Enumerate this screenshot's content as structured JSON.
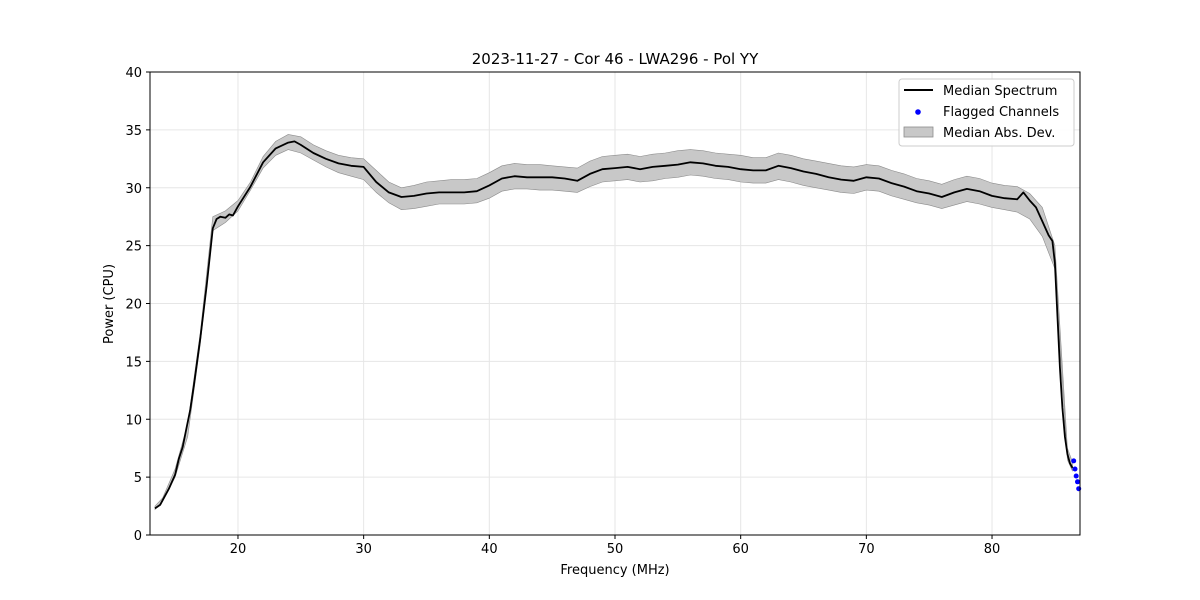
{
  "chart_data": {
    "type": "line",
    "title": "2023-11-27 - Cor 46 - LWA296 - Pol YY",
    "xlabel": "Frequency (MHz)",
    "ylabel": "Power (CPU)",
    "xlim": [
      13,
      87
    ],
    "ylim": [
      0,
      40
    ],
    "xticks": [
      20,
      30,
      40,
      50,
      60,
      70,
      80
    ],
    "yticks": [
      0,
      5,
      10,
      15,
      20,
      25,
      30,
      35,
      40
    ],
    "grid": true,
    "legend_position": "top-right",
    "legend": {
      "median_label": "Median Spectrum",
      "flagged_label": "Flagged Channels",
      "mad_label": "Median Abs. Dev."
    },
    "colors": {
      "median": "#000000",
      "flagged": "#0000ff",
      "mad_fill": "#c8c8c8",
      "mad_edge": "#8c8c8c"
    },
    "series": [
      {
        "name": "Median Spectrum",
        "x": [
          13.4,
          13.8,
          14.0,
          14.5,
          15.0,
          15.3,
          15.6,
          15.9,
          16.2,
          16.5,
          17.0,
          17.5,
          18.0,
          18.3,
          18.6,
          19.0,
          19.3,
          19.6,
          20.0,
          21.0,
          22.0,
          23.0,
          24.0,
          24.5,
          25.0,
          26.0,
          27.0,
          28.0,
          29.0,
          30.0,
          31.0,
          32.0,
          33.0,
          34.0,
          35.0,
          36.0,
          37.0,
          38.0,
          39.0,
          40.0,
          41.0,
          42.0,
          43.0,
          44.0,
          45.0,
          46.0,
          47.0,
          48.0,
          49.0,
          50.0,
          51.0,
          52.0,
          53.0,
          54.0,
          55.0,
          56.0,
          57.0,
          58.0,
          59.0,
          60.0,
          61.0,
          62.0,
          63.0,
          64.0,
          65.0,
          66.0,
          67.0,
          68.0,
          69.0,
          70.0,
          71.0,
          72.0,
          73.0,
          74.0,
          75.0,
          76.0,
          77.0,
          78.0,
          79.0,
          80.0,
          81.0,
          82.0,
          82.5,
          83.0,
          83.5,
          84.0,
          84.5,
          84.8,
          85.0,
          85.2,
          85.4,
          85.6,
          85.8,
          86.0,
          86.2,
          86.4
        ],
        "y": [
          2.3,
          2.6,
          3.0,
          4.0,
          5.2,
          6.6,
          7.6,
          9.2,
          10.8,
          13.0,
          17.0,
          21.5,
          26.5,
          27.3,
          27.5,
          27.4,
          27.7,
          27.6,
          28.4,
          30.1,
          32.2,
          33.4,
          33.9,
          34.0,
          33.7,
          33.0,
          32.5,
          32.1,
          31.9,
          31.8,
          30.5,
          29.6,
          29.2,
          29.3,
          29.5,
          29.6,
          29.6,
          29.6,
          29.7,
          30.2,
          30.8,
          31.0,
          30.9,
          30.9,
          30.9,
          30.8,
          30.6,
          31.2,
          31.6,
          31.7,
          31.8,
          31.6,
          31.8,
          31.9,
          32.0,
          32.2,
          32.1,
          31.9,
          31.8,
          31.6,
          31.5,
          31.5,
          31.9,
          31.7,
          31.4,
          31.2,
          30.9,
          30.7,
          30.6,
          30.9,
          30.8,
          30.4,
          30.1,
          29.7,
          29.5,
          29.2,
          29.6,
          29.9,
          29.7,
          29.3,
          29.1,
          29.0,
          29.6,
          28.9,
          28.3,
          27.1,
          25.9,
          25.4,
          23.5,
          19.0,
          14.5,
          11.0,
          8.5,
          7.0,
          6.2,
          5.8
        ]
      },
      {
        "name": "Median Abs. Dev.",
        "x": [
          13.4,
          14.0,
          15.0,
          16.0,
          17.0,
          18.0,
          19.0,
          20.0,
          21.0,
          22.0,
          23.0,
          24.0,
          25.0,
          26.0,
          27.0,
          28.0,
          29.0,
          30.0,
          31.0,
          32.0,
          33.0,
          34.0,
          35.0,
          36.0,
          37.0,
          38.0,
          39.0,
          40.0,
          41.0,
          42.0,
          43.0,
          44.0,
          45.0,
          46.0,
          47.0,
          48.0,
          49.0,
          50.0,
          51.0,
          52.0,
          53.0,
          54.0,
          55.0,
          56.0,
          57.0,
          58.0,
          59.0,
          60.0,
          61.0,
          62.0,
          63.0,
          64.0,
          65.0,
          66.0,
          67.0,
          68.0,
          69.0,
          70.0,
          71.0,
          72.0,
          73.0,
          74.0,
          75.0,
          76.0,
          77.0,
          78.0,
          79.0,
          80.0,
          81.0,
          82.0,
          83.0,
          84.0,
          85.0,
          86.0,
          86.4
        ],
        "lower": [
          2.2,
          2.9,
          5.0,
          8.5,
          16.5,
          26.3,
          27.0,
          28.0,
          29.8,
          31.7,
          32.8,
          33.3,
          33.0,
          32.4,
          31.8,
          31.3,
          31.0,
          30.7,
          29.6,
          28.7,
          28.1,
          28.2,
          28.4,
          28.6,
          28.6,
          28.6,
          28.7,
          29.1,
          29.7,
          29.9,
          29.9,
          29.8,
          29.8,
          29.7,
          29.6,
          30.1,
          30.5,
          30.6,
          30.7,
          30.5,
          30.6,
          30.8,
          30.9,
          31.1,
          31.0,
          30.8,
          30.7,
          30.5,
          30.4,
          30.4,
          30.7,
          30.5,
          30.2,
          30.0,
          29.8,
          29.6,
          29.5,
          29.8,
          29.7,
          29.3,
          29.0,
          28.7,
          28.5,
          28.2,
          28.5,
          28.8,
          28.6,
          28.3,
          28.1,
          27.9,
          27.3,
          25.8,
          23.0,
          6.5,
          5.5
        ],
        "upper": [
          2.5,
          3.2,
          5.7,
          9.6,
          17.5,
          27.5,
          28.0,
          28.9,
          30.5,
          32.7,
          34.0,
          34.6,
          34.4,
          33.7,
          33.2,
          32.8,
          32.6,
          32.5,
          31.5,
          30.5,
          30.0,
          30.2,
          30.5,
          30.6,
          30.7,
          30.7,
          30.8,
          31.3,
          31.9,
          32.1,
          32.0,
          32.0,
          31.9,
          31.8,
          31.7,
          32.3,
          32.7,
          32.8,
          32.9,
          32.7,
          32.9,
          33.0,
          33.2,
          33.3,
          33.2,
          33.0,
          32.9,
          32.8,
          32.6,
          32.6,
          33.0,
          32.8,
          32.5,
          32.3,
          32.1,
          31.9,
          31.8,
          32.0,
          31.9,
          31.5,
          31.2,
          30.8,
          30.6,
          30.3,
          30.7,
          31.0,
          30.8,
          30.4,
          30.2,
          30.1,
          29.5,
          28.3,
          25.0,
          7.5,
          6.3
        ]
      },
      {
        "name": "Flagged Channels",
        "x": [
          86.5,
          86.6,
          86.7,
          86.8,
          86.9
        ],
        "y": [
          6.4,
          5.7,
          5.1,
          4.6,
          4.0
        ]
      }
    ]
  }
}
